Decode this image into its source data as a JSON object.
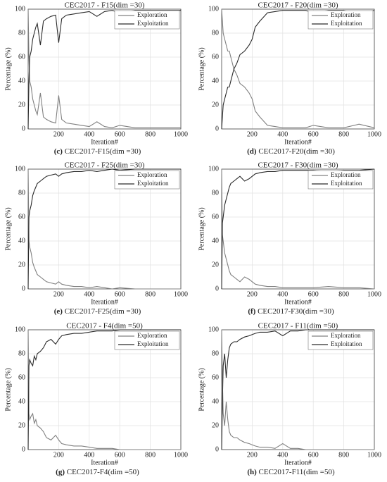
{
  "chart_data": [
    {
      "type": "line",
      "title": "CEC2017 - F15(dim =30)",
      "x_label": "Iteration#",
      "y_label": "Percentage (%)",
      "label": "(c)",
      "caption": "CEC2017-F15(dim =30)",
      "x": [
        0,
        5,
        10,
        20,
        30,
        40,
        50,
        60,
        80,
        100,
        120,
        150,
        180,
        200,
        220,
        250,
        300,
        350,
        400,
        450,
        500,
        550,
        600,
        700,
        800,
        900,
        1000
      ],
      "series": [
        {
          "name": "Exploration",
          "color": "#808080",
          "values": [
            100,
            60,
            40,
            35,
            25,
            20,
            15,
            12,
            30,
            10,
            8,
            6,
            5,
            28,
            8,
            5,
            4,
            3,
            2,
            6,
            2,
            1,
            3,
            1,
            1,
            1,
            1
          ]
        },
        {
          "name": "Exploitation",
          "color": "#2a2a2a",
          "values": [
            0,
            40,
            60,
            65,
            75,
            80,
            85,
            88,
            70,
            90,
            92,
            94,
            95,
            72,
            92,
            95,
            96,
            97,
            98,
            94,
            98,
            99,
            97,
            99,
            99,
            99,
            99
          ]
        }
      ],
      "xlim": [
        0,
        1000
      ],
      "xticks": [
        200,
        400,
        600,
        800,
        1000
      ],
      "ylim": [
        0,
        100
      ],
      "yticks": [
        0,
        20,
        40,
        60,
        80,
        100
      ],
      "grid": true,
      "legend": "upper right"
    },
    {
      "type": "line",
      "title": "CEC2017 - F20(dim =30)",
      "x_label": "Iteration#",
      "y_label": "Percentage (%)",
      "label": "(d)",
      "caption": "CEC2017-F20(dim =30)",
      "x": [
        0,
        5,
        10,
        20,
        30,
        40,
        50,
        60,
        80,
        100,
        120,
        150,
        180,
        200,
        220,
        250,
        300,
        350,
        400,
        450,
        500,
        550,
        600,
        700,
        800,
        900,
        1000
      ],
      "series": [
        {
          "name": "Exploration",
          "color": "#808080",
          "values": [
            100,
            90,
            80,
            75,
            70,
            65,
            65,
            60,
            50,
            45,
            38,
            35,
            30,
            25,
            15,
            10,
            3,
            2,
            1,
            1,
            1,
            1,
            3,
            1,
            1,
            4,
            1
          ]
        },
        {
          "name": "Exploitation",
          "color": "#2a2a2a",
          "values": [
            0,
            10,
            20,
            25,
            30,
            35,
            35,
            40,
            50,
            55,
            62,
            65,
            70,
            75,
            85,
            90,
            97,
            98,
            99,
            99,
            99,
            99,
            97,
            99,
            99,
            96,
            99
          ]
        }
      ],
      "xlim": [
        0,
        1000
      ],
      "xticks": [
        200,
        400,
        600,
        800,
        1000
      ],
      "ylim": [
        0,
        100
      ],
      "yticks": [
        0,
        20,
        40,
        60,
        80,
        100
      ],
      "grid": true,
      "legend": "upper right"
    },
    {
      "type": "line",
      "title": "CEC2017 - F25(dim =30)",
      "x_label": "Iteration#",
      "y_label": "Percentage (%)",
      "label": "(e)",
      "caption": "CEC2017-F25(dim =30)",
      "x": [
        0,
        5,
        10,
        20,
        30,
        40,
        50,
        60,
        80,
        100,
        120,
        150,
        180,
        200,
        220,
        250,
        300,
        350,
        400,
        450,
        500,
        550,
        600,
        700,
        800,
        900,
        1000
      ],
      "series": [
        {
          "name": "Exploration",
          "color": "#808080",
          "values": [
            100,
            40,
            35,
            30,
            22,
            18,
            15,
            12,
            10,
            8,
            6,
            5,
            4,
            6,
            4,
            3,
            2,
            2,
            1,
            2,
            1,
            0,
            1,
            0,
            0,
            0,
            0
          ]
        },
        {
          "name": "Exploitation",
          "color": "#2a2a2a",
          "values": [
            0,
            60,
            65,
            70,
            78,
            82,
            85,
            88,
            90,
            92,
            94,
            95,
            96,
            94,
            96,
            97,
            98,
            98,
            99,
            98,
            99,
            100,
            99,
            100,
            100,
            100,
            100
          ]
        }
      ],
      "xlim": [
        0,
        1000
      ],
      "xticks": [
        200,
        400,
        600,
        800,
        1000
      ],
      "ylim": [
        0,
        100
      ],
      "yticks": [
        0,
        20,
        40,
        60,
        80,
        100
      ],
      "grid": true,
      "legend": "upper right"
    },
    {
      "type": "line",
      "title": "CEC2017 - F30(dim =30)",
      "x_label": "Iteration#",
      "y_label": "Percentage (%)",
      "label": "(f)",
      "caption": "CEC2017-F30(dim =30)",
      "x": [
        0,
        5,
        10,
        20,
        30,
        40,
        50,
        60,
        80,
        100,
        120,
        150,
        180,
        200,
        220,
        250,
        300,
        350,
        400,
        450,
        500,
        550,
        600,
        700,
        800,
        900,
        1000
      ],
      "series": [
        {
          "name": "Exploration",
          "color": "#808080",
          "values": [
            100,
            45,
            40,
            30,
            25,
            20,
            15,
            12,
            10,
            8,
            6,
            10,
            8,
            6,
            4,
            3,
            2,
            2,
            1,
            1,
            1,
            1,
            1,
            2,
            1,
            1,
            0
          ]
        },
        {
          "name": "Exploitation",
          "color": "#2a2a2a",
          "values": [
            0,
            55,
            60,
            70,
            75,
            80,
            85,
            88,
            90,
            92,
            94,
            90,
            92,
            94,
            96,
            97,
            98,
            98,
            99,
            99,
            99,
            99,
            99,
            98,
            99,
            99,
            100
          ]
        }
      ],
      "xlim": [
        0,
        1000
      ],
      "xticks": [
        200,
        400,
        600,
        800,
        1000
      ],
      "ylim": [
        0,
        100
      ],
      "yticks": [
        0,
        20,
        40,
        60,
        80,
        100
      ],
      "grid": true,
      "legend": "upper right"
    },
    {
      "type": "line",
      "title": "CEC2017 - F4(dim =50)",
      "x_label": "Iteration#",
      "y_label": "Percentage (%)",
      "label": "(g)",
      "caption": "CEC2017-F4(dim =50)",
      "x": [
        0,
        5,
        10,
        20,
        30,
        40,
        50,
        60,
        80,
        100,
        120,
        150,
        180,
        200,
        220,
        250,
        300,
        350,
        400,
        450,
        500,
        550,
        600,
        700,
        800,
        900,
        1000
      ],
      "series": [
        {
          "name": "Exploration",
          "color": "#808080",
          "values": [
            100,
            30,
            25,
            28,
            30,
            22,
            25,
            20,
            18,
            15,
            10,
            8,
            12,
            8,
            5,
            4,
            3,
            3,
            2,
            1,
            1,
            1,
            0,
            0,
            0,
            0,
            0
          ]
        },
        {
          "name": "Exploitation",
          "color": "#2a2a2a",
          "values": [
            0,
            70,
            75,
            72,
            70,
            78,
            75,
            80,
            82,
            85,
            90,
            92,
            88,
            92,
            95,
            96,
            97,
            97,
            98,
            99,
            99,
            99,
            100,
            100,
            100,
            100,
            100
          ]
        }
      ],
      "xlim": [
        0,
        1000
      ],
      "xticks": [
        200,
        400,
        600,
        800,
        1000
      ],
      "ylim": [
        0,
        100
      ],
      "yticks": [
        0,
        20,
        40,
        60,
        80,
        100
      ],
      "grid": true,
      "legend": "upper right"
    },
    {
      "type": "line",
      "title": "CEC2017 - F11(dim =50)",
      "x_label": "Iteration#",
      "y_label": "Percentage (%)",
      "label": "(h)",
      "caption": "CEC2017-F11(dim =50)",
      "x": [
        0,
        5,
        10,
        20,
        30,
        40,
        50,
        60,
        80,
        100,
        120,
        150,
        180,
        200,
        220,
        250,
        300,
        350,
        400,
        450,
        500,
        550,
        600,
        700,
        800,
        900,
        1000
      ],
      "series": [
        {
          "name": "Exploration",
          "color": "#808080",
          "values": [
            100,
            60,
            30,
            20,
            40,
            25,
            15,
            12,
            10,
            10,
            8,
            6,
            5,
            4,
            3,
            2,
            2,
            1,
            5,
            1,
            1,
            0,
            0,
            0,
            0,
            0,
            0
          ]
        },
        {
          "name": "Exploitation",
          "color": "#2a2a2a",
          "values": [
            0,
            40,
            70,
            80,
            60,
            75,
            85,
            88,
            90,
            90,
            92,
            94,
            95,
            96,
            97,
            98,
            98,
            99,
            95,
            99,
            99,
            100,
            100,
            100,
            100,
            100,
            100
          ]
        }
      ],
      "xlim": [
        0,
        1000
      ],
      "xticks": [
        200,
        400,
        600,
        800,
        1000
      ],
      "ylim": [
        0,
        100
      ],
      "yticks": [
        0,
        20,
        40,
        60,
        80,
        100
      ],
      "grid": true,
      "legend": "upper right"
    }
  ]
}
